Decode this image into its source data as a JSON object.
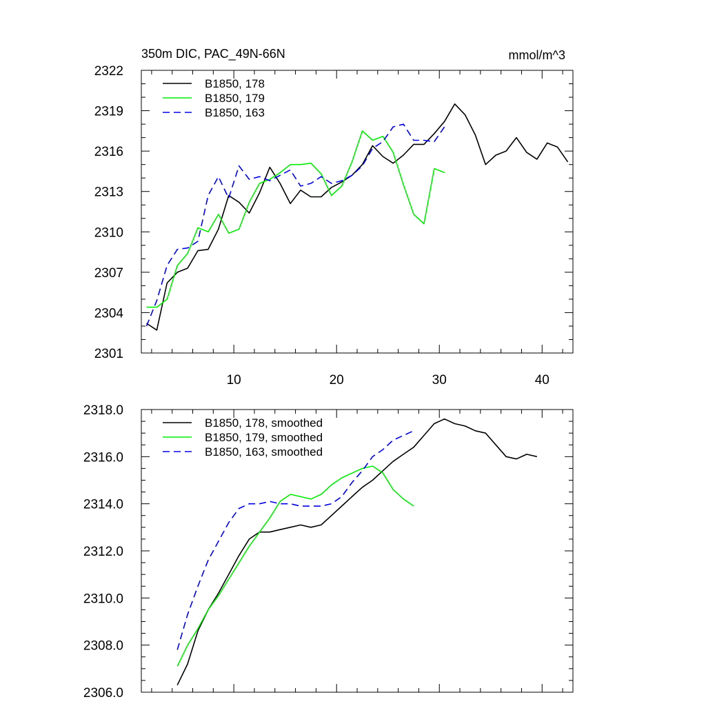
{
  "chart_data": [
    {
      "type": "line",
      "title": "350m DIC, PAC_49N-66N",
      "units": "mmol/m^3",
      "xlabel": "",
      "ylabel": "",
      "xlim": [
        1,
        43
      ],
      "ylim": [
        2301,
        2322
      ],
      "x_ticks": [
        10,
        20,
        30,
        40
      ],
      "x_tick_labels": [
        "10",
        "20",
        "30",
        "40"
      ],
      "y_ticks": [
        2301,
        2304,
        2307,
        2310,
        2313,
        2316,
        2319,
        2322
      ],
      "y_tick_labels": [
        "2301",
        "2304",
        "2307",
        "2310",
        "2313",
        "2316",
        "2319",
        "2322"
      ],
      "legend_position": "top-left",
      "series": [
        {
          "name": "B1850, 178",
          "color": "#000000",
          "dash": "solid",
          "x": [
            1.5,
            2.5,
            3.5,
            4.5,
            5.5,
            6.5,
            7.5,
            8.5,
            9.5,
            10.5,
            11.5,
            12.5,
            13.5,
            14.5,
            15.5,
            16.5,
            17.5,
            18.5,
            19.5,
            20.5,
            21.5,
            22.5,
            23.5,
            24.5,
            25.5,
            26.5,
            27.5,
            28.5,
            29.5,
            30.5,
            31.5,
            32.5,
            33.5,
            34.5,
            35.5,
            36.5,
            37.5,
            38.5,
            39.5,
            40.5,
            41.5,
            42.5
          ],
          "values": [
            2303.2,
            2302.7,
            2306.2,
            2307.0,
            2307.3,
            2308.6,
            2308.7,
            2310.2,
            2312.7,
            2312.2,
            2311.4,
            2312.9,
            2314.8,
            2313.6,
            2312.1,
            2313.1,
            2312.6,
            2312.6,
            2313.3,
            2313.7,
            2314.2,
            2315.0,
            2316.4,
            2315.6,
            2315.1,
            2315.7,
            2316.5,
            2316.5,
            2317.3,
            2318.2,
            2319.5,
            2318.7,
            2317.2,
            2315.0,
            2315.7,
            2316.0,
            2317.0,
            2315.9,
            2315.4,
            2316.6,
            2316.3,
            2315.2
          ]
        },
        {
          "name": "B1850, 179",
          "color": "#00ee00",
          "dash": "solid",
          "x": [
            1.5,
            2.5,
            3.5,
            4.5,
            5.5,
            6.5,
            7.5,
            8.5,
            9.5,
            10.5,
            11.5,
            12.5,
            13.5,
            14.5,
            15.5,
            16.5,
            17.5,
            18.5,
            19.5,
            20.5,
            21.5,
            22.5,
            23.5,
            24.5,
            25.5,
            26.5,
            27.5,
            28.5,
            29.5,
            30.5
          ],
          "values": [
            2304.4,
            2304.4,
            2305.0,
            2307.5,
            2308.4,
            2310.3,
            2310.0,
            2311.3,
            2309.9,
            2310.2,
            2312.2,
            2313.6,
            2313.9,
            2314.4,
            2315.0,
            2315.0,
            2315.1,
            2314.3,
            2312.7,
            2313.4,
            2315.2,
            2317.5,
            2316.8,
            2317.1,
            2315.9,
            2313.5,
            2311.3,
            2310.6,
            2314.7,
            2314.4
          ]
        },
        {
          "name": "B1850, 163",
          "color": "#0000ee",
          "dash": "dashed",
          "x": [
            1.5,
            2.5,
            3.5,
            4.5,
            5.5,
            6.5,
            7.5,
            8.5,
            9.5,
            10.5,
            11.5,
            12.5,
            13.5,
            14.5,
            15.5,
            16.5,
            17.5,
            18.5,
            19.5,
            20.5,
            21.5,
            22.5,
            23.5,
            24.5,
            25.5,
            26.5,
            27.5,
            28.5,
            29.5,
            30.5
          ],
          "values": [
            2303.0,
            2304.9,
            2307.5,
            2308.7,
            2308.8,
            2309.3,
            2312.7,
            2314.1,
            2312.5,
            2314.9,
            2313.9,
            2314.1,
            2313.8,
            2314.2,
            2314.6,
            2313.4,
            2313.6,
            2314.1,
            2313.6,
            2313.8,
            2314.2,
            2314.9,
            2316.2,
            2316.7,
            2317.8,
            2318.0,
            2316.8,
            2316.8,
            2316.7,
            2317.8
          ]
        }
      ]
    },
    {
      "type": "line",
      "title": "",
      "xlabel": "",
      "ylabel": "",
      "xlim": [
        1,
        43
      ],
      "ylim": [
        2306.0,
        2318.0
      ],
      "x_ticks": [
        10,
        20,
        30,
        40
      ],
      "x_tick_labels": [],
      "y_ticks": [
        2306,
        2308,
        2310,
        2312,
        2314,
        2316,
        2318
      ],
      "y_tick_labels": [
        "2306.0",
        "2308.0",
        "2310.0",
        "2312.0",
        "2314.0",
        "2316.0",
        "2318.0"
      ],
      "legend_position": "top-left",
      "series": [
        {
          "name": "B1850, 178, smoothed",
          "color": "#000000",
          "dash": "solid",
          "x": [
            4.5,
            5.5,
            6.5,
            7.5,
            8.5,
            9.5,
            10.5,
            11.5,
            12.5,
            13.5,
            14.5,
            15.5,
            16.5,
            17.5,
            18.5,
            19.5,
            20.5,
            21.5,
            22.5,
            23.5,
            24.5,
            25.5,
            26.5,
            27.5,
            28.5,
            29.5,
            30.5,
            31.5,
            32.5,
            33.5,
            34.5,
            35.5,
            36.5,
            37.5,
            38.5,
            39.5
          ],
          "values": [
            2306.3,
            2307.2,
            2308.6,
            2309.5,
            2310.2,
            2311.0,
            2311.8,
            2312.5,
            2312.8,
            2312.8,
            2312.9,
            2313.0,
            2313.1,
            2313.0,
            2313.1,
            2313.5,
            2313.9,
            2314.3,
            2314.7,
            2315.0,
            2315.4,
            2315.8,
            2316.1,
            2316.4,
            2316.9,
            2317.4,
            2317.6,
            2317.4,
            2317.3,
            2317.1,
            2317.0,
            2316.5,
            2316.0,
            2315.9,
            2316.1,
            2316.0
          ]
        },
        {
          "name": "B1850, 179, smoothed",
          "color": "#00ee00",
          "dash": "solid",
          "x": [
            4.5,
            5.5,
            6.5,
            7.5,
            8.5,
            9.5,
            10.5,
            11.5,
            12.5,
            13.5,
            14.5,
            15.5,
            16.5,
            17.5,
            18.5,
            19.5,
            20.5,
            21.5,
            22.5,
            23.5,
            24.5,
            25.5,
            26.5,
            27.5
          ],
          "values": [
            2307.1,
            2308.0,
            2308.7,
            2309.5,
            2310.1,
            2310.8,
            2311.5,
            2312.2,
            2312.8,
            2313.4,
            2314.1,
            2314.4,
            2314.3,
            2314.2,
            2314.4,
            2314.8,
            2315.1,
            2315.3,
            2315.5,
            2315.6,
            2315.3,
            2314.6,
            2314.2,
            2313.9
          ]
        },
        {
          "name": "B1850, 163, smoothed",
          "color": "#0000ee",
          "dash": "dashed",
          "x": [
            4.5,
            5.5,
            6.5,
            7.5,
            8.5,
            9.5,
            10.5,
            11.5,
            12.5,
            13.5,
            14.5,
            15.5,
            16.5,
            17.5,
            18.5,
            19.5,
            20.5,
            21.5,
            22.5,
            23.5,
            24.5,
            25.5,
            26.5,
            27.5
          ],
          "values": [
            2307.8,
            2309.3,
            2310.5,
            2311.6,
            2312.4,
            2313.2,
            2313.8,
            2314.0,
            2314.0,
            2314.1,
            2314.0,
            2314.0,
            2313.9,
            2313.9,
            2313.9,
            2314.0,
            2314.3,
            2314.9,
            2315.4,
            2316.0,
            2316.3,
            2316.7,
            2316.9,
            2317.1
          ]
        }
      ]
    }
  ]
}
